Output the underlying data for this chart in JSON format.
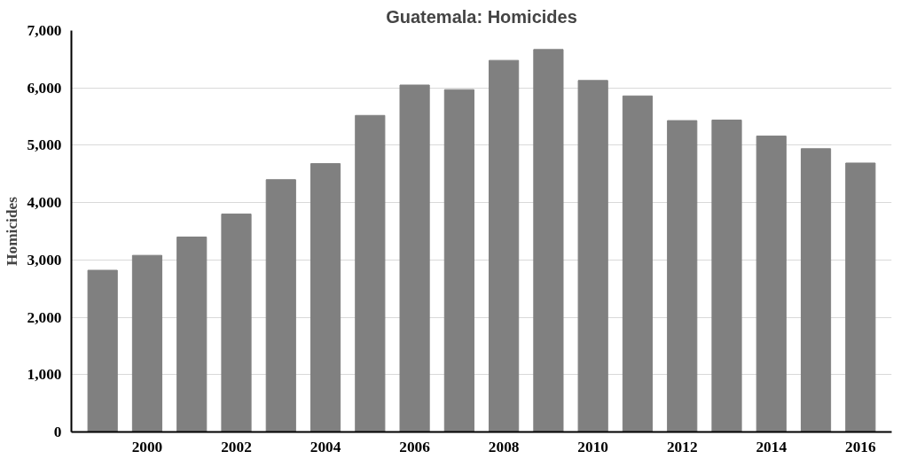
{
  "chart_data": {
    "type": "bar",
    "title": "Guatemala: Homicides",
    "ylabel": "Homicides",
    "categories": [
      null,
      "2000",
      null,
      "2002",
      null,
      "2004",
      null,
      "2006",
      null,
      "2008",
      null,
      "2010",
      null,
      "2012",
      null,
      "2014",
      null,
      "2016"
    ],
    "values": [
      2820,
      3080,
      3400,
      3800,
      4400,
      4680,
      5520,
      6050,
      5970,
      6480,
      6670,
      6130,
      5860,
      5430,
      5440,
      5160,
      4940,
      4690
    ],
    "color": "#808080",
    "ylim": [
      0,
      7000
    ],
    "yticks": [
      {
        "value": 0,
        "label": "0"
      },
      {
        "value": 1000,
        "label": "1,000"
      },
      {
        "value": 2000,
        "label": "2,000"
      },
      {
        "value": 3000,
        "label": "3,000"
      },
      {
        "value": 4000,
        "label": "4,000"
      },
      {
        "value": 5000,
        "label": "5,000"
      },
      {
        "value": 6000,
        "label": "6,000"
      },
      {
        "value": 7000,
        "label": "7,000"
      }
    ],
    "grid": "y"
  }
}
